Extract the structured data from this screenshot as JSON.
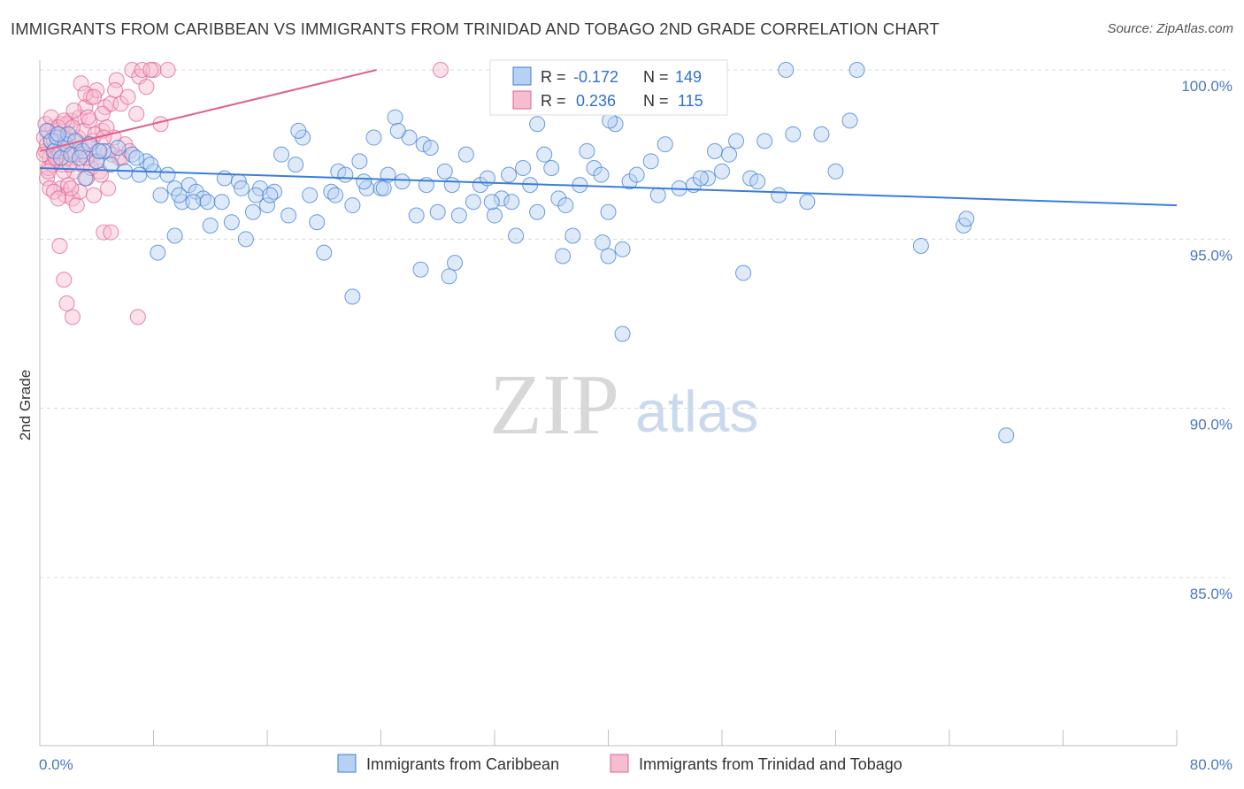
{
  "title": "IMMIGRANTS FROM CARIBBEAN VS IMMIGRANTS FROM TRINIDAD AND TOBAGO 2ND GRADE CORRELATION CHART",
  "source": "Source: ZipAtlas.com",
  "watermark": {
    "zip": "ZIP",
    "atlas": "atlas"
  },
  "colors": {
    "blue": "#3b7dd8",
    "blue_fill": "#b8d0f2",
    "pink": "#e06090",
    "pink_fill": "#f6bcd0",
    "grid": "#d8d8d8",
    "tick": "#4a78c0"
  },
  "stats": {
    "r_label": "R =",
    "n_label": "N =",
    "blue_r": "-0.172",
    "blue_n": "149",
    "pink_r": "0.236",
    "pink_n": "115"
  },
  "chart_data": {
    "type": "scatter",
    "title": "IMMIGRANTS FROM CARIBBEAN VS IMMIGRANTS FROM TRINIDAD AND TOBAGO 2ND GRADE CORRELATION CHART",
    "xlabel": "",
    "ylabel": "2nd Grade",
    "xlim": [
      0,
      80
    ],
    "ylim": [
      80,
      100.8
    ],
    "x_ticks_labels": [
      "0.0%",
      "80.0%"
    ],
    "y_ticks": [
      85,
      90,
      95,
      100
    ],
    "y_tick_labels": [
      "85.0%",
      "90.0%",
      "95.0%",
      "100.0%"
    ],
    "grid": "horizontal dashed",
    "legend_position": "bottom-center",
    "series": [
      {
        "name": "Immigrants from Caribbean",
        "color": "#3b7dd8",
        "trend": {
          "x": [
            0,
            80
          ],
          "y": [
            97.1,
            96.0
          ]
        },
        "points": [
          [
            0.5,
            98.2
          ],
          [
            0.8,
            97.9
          ],
          [
            1.0,
            97.6
          ],
          [
            1.2,
            98.0
          ],
          [
            1.5,
            97.4
          ],
          [
            1.8,
            97.8
          ],
          [
            2.0,
            98.1
          ],
          [
            2.2,
            97.5
          ],
          [
            2.5,
            97.9
          ],
          [
            3.0,
            97.6
          ],
          [
            3.5,
            97.8
          ],
          [
            4.0,
            97.3
          ],
          [
            4.5,
            97.6
          ],
          [
            5.0,
            97.2
          ],
          [
            5.5,
            97.7
          ],
          [
            6.0,
            97.0
          ],
          [
            6.5,
            97.5
          ],
          [
            7.0,
            96.9
          ],
          [
            7.5,
            97.3
          ],
          [
            8.0,
            97.0
          ],
          [
            8.5,
            96.3
          ],
          [
            9.0,
            96.9
          ],
          [
            9.5,
            96.5
          ],
          [
            10.0,
            96.1
          ],
          [
            10.5,
            96.6
          ],
          [
            11.0,
            96.4
          ],
          [
            11.5,
            96.2
          ],
          [
            12.0,
            95.4
          ],
          [
            13.0,
            96.8
          ],
          [
            13.5,
            95.5
          ],
          [
            14.0,
            96.7
          ],
          [
            14.5,
            95.0
          ],
          [
            15.0,
            95.8
          ],
          [
            15.5,
            96.5
          ],
          [
            16.0,
            96.0
          ],
          [
            16.5,
            96.4
          ],
          [
            17.0,
            97.5
          ],
          [
            17.5,
            95.7
          ],
          [
            18.0,
            97.2
          ],
          [
            18.5,
            98.0
          ],
          [
            19.0,
            96.3
          ],
          [
            19.5,
            95.5
          ],
          [
            20.0,
            94.6
          ],
          [
            20.5,
            96.4
          ],
          [
            21.0,
            97.0
          ],
          [
            21.5,
            96.9
          ],
          [
            22.0,
            96.0
          ],
          [
            22.5,
            97.3
          ],
          [
            23.0,
            96.5
          ],
          [
            23.5,
            98.0
          ],
          [
            24.0,
            96.5
          ],
          [
            24.5,
            96.9
          ],
          [
            25.0,
            98.6
          ],
          [
            25.5,
            96.7
          ],
          [
            26.0,
            98.0
          ],
          [
            26.5,
            95.7
          ],
          [
            27.0,
            97.8
          ],
          [
            27.5,
            97.7
          ],
          [
            28.0,
            95.8
          ],
          [
            28.5,
            97.0
          ],
          [
            29.0,
            96.6
          ],
          [
            29.5,
            95.7
          ],
          [
            30.0,
            97.5
          ],
          [
            30.5,
            96.1
          ],
          [
            31.0,
            96.6
          ],
          [
            31.5,
            96.8
          ],
          [
            32.0,
            95.7
          ],
          [
            32.5,
            96.2
          ],
          [
            33.0,
            96.9
          ],
          [
            33.5,
            95.1
          ],
          [
            34.0,
            97.1
          ],
          [
            34.5,
            96.6
          ],
          [
            35.0,
            98.4
          ],
          [
            35.5,
            97.5
          ],
          [
            36.0,
            97.1
          ],
          [
            36.5,
            96.2
          ],
          [
            37.0,
            96.0
          ],
          [
            37.5,
            95.1
          ],
          [
            38.0,
            96.6
          ],
          [
            38.5,
            97.6
          ],
          [
            39.0,
            97.1
          ],
          [
            39.5,
            96.9
          ],
          [
            40.0,
            94.5
          ],
          [
            40.5,
            98.4
          ],
          [
            41.0,
            94.7
          ],
          [
            41.5,
            96.7
          ],
          [
            42.0,
            96.9
          ],
          [
            43.0,
            97.3
          ],
          [
            44.0,
            97.8
          ],
          [
            45.0,
            96.5
          ],
          [
            46.0,
            96.6
          ],
          [
            47.0,
            96.8
          ],
          [
            47.5,
            97.6
          ],
          [
            48.0,
            97.0
          ],
          [
            49.0,
            97.9
          ],
          [
            49.5,
            94.0
          ],
          [
            50.0,
            96.8
          ],
          [
            51.0,
            97.9
          ],
          [
            52.0,
            96.3
          ],
          [
            53.0,
            98.1
          ],
          [
            54.0,
            96.1
          ],
          [
            55.0,
            98.1
          ],
          [
            56.0,
            97.0
          ],
          [
            57.0,
            98.5
          ],
          [
            62.0,
            94.8
          ],
          [
            65.0,
            95.4
          ],
          [
            65.2,
            95.6
          ],
          [
            68.0,
            89.2
          ],
          [
            1.3,
            98.1
          ],
          [
            2.8,
            97.4
          ],
          [
            3.2,
            96.8
          ],
          [
            4.2,
            97.6
          ],
          [
            6.8,
            97.4
          ],
          [
            7.8,
            97.2
          ],
          [
            9.8,
            96.3
          ],
          [
            10.8,
            96.1
          ],
          [
            11.8,
            96.1
          ],
          [
            12.8,
            96.1
          ],
          [
            14.2,
            96.5
          ],
          [
            15.2,
            96.3
          ],
          [
            16.2,
            96.3
          ],
          [
            20.8,
            96.3
          ],
          [
            22.8,
            96.7
          ],
          [
            24.2,
            96.5
          ],
          [
            26.8,
            94.1
          ],
          [
            28.8,
            93.9
          ],
          [
            29.2,
            94.3
          ],
          [
            31.8,
            96.1
          ],
          [
            36.8,
            94.5
          ],
          [
            39.6,
            94.9
          ],
          [
            41.0,
            92.2
          ],
          [
            46.5,
            96.8
          ],
          [
            48.5,
            97.5
          ],
          [
            50.5,
            96.7
          ],
          [
            8.3,
            94.6
          ],
          [
            9.5,
            95.1
          ],
          [
            22.0,
            93.3
          ],
          [
            27.2,
            96.6
          ],
          [
            33.2,
            96.1
          ],
          [
            35.0,
            95.8
          ],
          [
            40.0,
            95.8
          ],
          [
            43.5,
            96.3
          ],
          [
            52.5,
            100.0
          ],
          [
            57.5,
            100.0
          ],
          [
            44.3,
            99.3
          ],
          [
            40.1,
            98.5
          ],
          [
            25.2,
            98.2
          ],
          [
            18.2,
            98.2
          ]
        ]
      },
      {
        "name": "Immigrants from Trinidad and Tobago",
        "color": "#e06090",
        "trend": {
          "x": [
            0,
            23.7
          ],
          "y": [
            97.6,
            100.0
          ]
        },
        "points": [
          [
            0.3,
            98.0
          ],
          [
            0.4,
            97.6
          ],
          [
            0.5,
            97.8
          ],
          [
            0.6,
            98.2
          ],
          [
            0.7,
            97.4
          ],
          [
            0.8,
            97.9
          ],
          [
            0.9,
            98.3
          ],
          [
            1.0,
            97.5
          ],
          [
            1.1,
            97.7
          ],
          [
            1.2,
            98.1
          ],
          [
            1.3,
            97.3
          ],
          [
            1.4,
            97.9
          ],
          [
            1.5,
            98.4
          ],
          [
            1.6,
            97.2
          ],
          [
            1.7,
            97.8
          ],
          [
            1.8,
            98.0
          ],
          [
            1.9,
            97.4
          ],
          [
            2.0,
            97.6
          ],
          [
            2.2,
            98.5
          ],
          [
            2.4,
            97.0
          ],
          [
            2.6,
            97.9
          ],
          [
            2.8,
            98.6
          ],
          [
            3.0,
            97.2
          ],
          [
            3.2,
            98.9
          ],
          [
            3.4,
            97.8
          ],
          [
            3.6,
            99.2
          ],
          [
            3.8,
            97.5
          ],
          [
            4.0,
            99.4
          ],
          [
            4.2,
            97.0
          ],
          [
            4.4,
            98.2
          ],
          [
            4.6,
            98.9
          ],
          [
            4.8,
            97.6
          ],
          [
            5.0,
            99.0
          ],
          [
            5.2,
            98.0
          ],
          [
            5.4,
            99.7
          ],
          [
            5.6,
            97.4
          ],
          [
            6.0,
            97.8
          ],
          [
            6.5,
            100.0
          ],
          [
            7.0,
            99.8
          ],
          [
            7.5,
            99.5
          ],
          [
            8.0,
            100.0
          ],
          [
            8.5,
            98.4
          ],
          [
            9.0,
            100.0
          ],
          [
            1.5,
            96.5
          ],
          [
            1.8,
            96.3
          ],
          [
            2.0,
            96.6
          ],
          [
            2.3,
            96.2
          ],
          [
            2.6,
            96.0
          ],
          [
            2.8,
            96.4
          ],
          [
            3.0,
            97.5
          ],
          [
            3.3,
            96.8
          ],
          [
            3.6,
            97.1
          ],
          [
            3.8,
            96.3
          ],
          [
            4.0,
            97.3
          ],
          [
            4.3,
            96.9
          ],
          [
            4.5,
            95.2
          ],
          [
            4.8,
            96.5
          ],
          [
            5.0,
            95.2
          ],
          [
            1.4,
            94.8
          ],
          [
            1.7,
            93.8
          ],
          [
            1.9,
            93.1
          ],
          [
            2.3,
            92.7
          ],
          [
            6.9,
            92.7
          ],
          [
            0.3,
            97.5
          ],
          [
            0.5,
            96.8
          ],
          [
            0.6,
            97.1
          ],
          [
            0.7,
            96.5
          ],
          [
            0.9,
            97.2
          ],
          [
            1.0,
            96.4
          ],
          [
            1.1,
            97.4
          ],
          [
            1.2,
            98.0
          ],
          [
            1.3,
            96.2
          ],
          [
            1.4,
            97.6
          ],
          [
            1.6,
            98.2
          ],
          [
            1.7,
            97.0
          ],
          [
            1.9,
            98.4
          ],
          [
            2.1,
            97.2
          ],
          [
            2.2,
            96.5
          ],
          [
            2.5,
            97.5
          ],
          [
            2.7,
            98.0
          ],
          [
            2.9,
            97.7
          ],
          [
            3.1,
            98.2
          ],
          [
            3.3,
            97.4
          ],
          [
            3.5,
            98.5
          ],
          [
            3.7,
            97.9
          ],
          [
            3.9,
            98.1
          ],
          [
            4.1,
            97.6
          ],
          [
            4.4,
            98.7
          ],
          [
            4.7,
            98.3
          ],
          [
            5.3,
            99.4
          ],
          [
            5.7,
            99.0
          ],
          [
            6.2,
            99.2
          ],
          [
            6.8,
            98.7
          ],
          [
            7.2,
            100.0
          ],
          [
            7.8,
            100.0
          ],
          [
            28.2,
            100.0
          ],
          [
            0.4,
            98.4
          ],
          [
            0.8,
            98.6
          ],
          [
            1.0,
            97.9
          ],
          [
            1.3,
            98.3
          ],
          [
            1.5,
            97.7
          ],
          [
            1.7,
            98.5
          ],
          [
            2.0,
            97.9
          ],
          [
            2.3,
            98.3
          ],
          [
            2.4,
            98.8
          ],
          [
            2.9,
            99.6
          ],
          [
            3.2,
            99.3
          ],
          [
            3.4,
            98.6
          ],
          [
            3.8,
            99.2
          ],
          [
            4.5,
            98.0
          ],
          [
            5.1,
            97.5
          ],
          [
            5.8,
            97.4
          ],
          [
            6.3,
            97.6
          ],
          [
            0.6,
            97.0
          ]
        ]
      }
    ]
  },
  "legend": {
    "blue_label": "Immigrants from Caribbean",
    "pink_label": "Immigrants from Trinidad and Tobago"
  }
}
